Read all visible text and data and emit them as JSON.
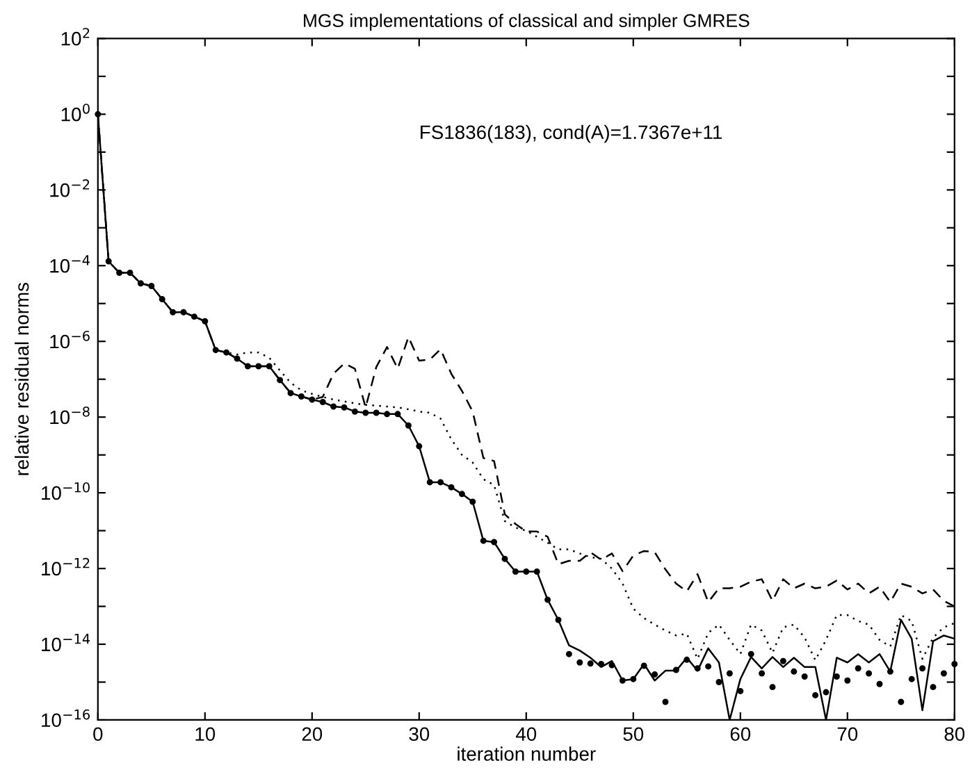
{
  "chart_data": {
    "type": "line",
    "title": "MGS implementations of classical and simpler GMRES",
    "xlabel": "iteration number",
    "ylabel": "relative residual norms",
    "annotations": [
      "FS1836(183), cond(A)=1.7367e+11"
    ],
    "x": [
      0,
      1,
      2,
      3,
      4,
      5,
      6,
      7,
      8,
      9,
      10,
      11,
      12,
      13,
      14,
      15,
      16,
      17,
      18,
      19,
      20,
      21,
      22,
      23,
      24,
      25,
      26,
      27,
      28,
      29,
      30,
      31,
      32,
      33,
      34,
      35,
      36,
      37,
      38,
      39,
      40,
      41,
      42,
      43,
      44,
      45,
      46,
      47,
      48,
      49,
      50,
      51,
      52,
      53,
      54,
      55,
      56,
      57,
      58,
      59,
      60,
      61,
      62,
      63,
      64,
      65,
      66,
      67,
      68,
      69,
      70,
      71,
      72,
      73,
      74,
      75,
      76,
      77,
      78,
      79,
      80
    ],
    "log": "y",
    "grid": false,
    "legend": false,
    "xlim": [
      0,
      80
    ],
    "xticks": [
      0,
      10,
      20,
      30,
      40,
      50,
      60,
      70,
      80
    ],
    "ylim": [
      1e-16,
      100
    ],
    "yticks": [
      {
        "value": 1e-16,
        "label": "10$^{−16}$"
      },
      {
        "value": 1e-15,
        "label": null
      },
      {
        "value": 1e-14,
        "label": "10$^{−14}$"
      },
      {
        "value": 1e-13,
        "label": null
      },
      {
        "value": 1e-12,
        "label": "10$^{−12}$"
      },
      {
        "value": 1e-11,
        "label": null
      },
      {
        "value": 1e-10,
        "label": "10$^{−10}$"
      },
      {
        "value": 1e-09,
        "label": null
      },
      {
        "value": 1e-08,
        "label": "10$^{−8}$"
      },
      {
        "value": 1e-07,
        "label": null
      },
      {
        "value": 1e-06,
        "label": "10$^{−6}$"
      },
      {
        "value": 1e-05,
        "label": null
      },
      {
        "value": 0.0001,
        "label": "10$^{−4}$"
      },
      {
        "value": 0.001,
        "label": null
      },
      {
        "value": 0.01,
        "label": "10$^{−2}$"
      },
      {
        "value": 0.1,
        "label": null
      },
      {
        "value": 1,
        "label": "10$^{0}$"
      },
      {
        "value": 10,
        "label": null
      },
      {
        "value": 100,
        "label": "10$^{2}$"
      }
    ],
    "series": [
      {
        "color": "#000000",
        "line_style": "solid",
        "marker": "none",
        "values": [
          1,
          0.00013,
          6.5e-05,
          6.5e-05,
          3.4e-05,
          2.9e-05,
          1.3e-05,
          5.9e-06,
          5.9e-06,
          4.5e-06,
          3.4e-06,
          5.9e-07,
          5.1e-07,
          3.5e-07,
          2.2e-07,
          2.2e-07,
          2.2e-07,
          9.5e-08,
          4.3e-08,
          3.5e-08,
          2.9e-08,
          2.5e-08,
          1.9e-08,
          1.8e-08,
          1.4e-08,
          1.3e-08,
          1.3e-08,
          1.2e-08,
          1.2e-08,
          6e-09,
          1.7e-09,
          1.9e-10,
          1.9e-10,
          1.4e-10,
          9.3e-11,
          5.8e-11,
          5.4e-12,
          5e-12,
          1.8e-12,
          8.3e-13,
          8.3e-13,
          8.3e-13,
          1.5e-13,
          4.4e-14,
          9.3e-15,
          6.8e-15,
          4.4e-15,
          2.5e-15,
          3.6e-15,
          1.1e-15,
          1.2e-15,
          3e-15,
          1.1e-15,
          2e-15,
          2e-15,
          4.4e-15,
          2e-15,
          7.8e-15,
          3.3e-15,
          1e-16,
          1.2e-15,
          4.6e-15,
          2.3e-15,
          4.6e-15,
          2.5e-15,
          4.4e-15,
          2.5e-15,
          2.5e-15,
          1e-16,
          4.4e-15,
          3.3e-15,
          5.5e-15,
          3.3e-15,
          5.5e-15,
          1.9e-15,
          4.4e-14,
          1.4e-14,
          1.8e-16,
          1.2e-14,
          1.7e-14,
          1.4e-14
        ]
      },
      {
        "type": "scatter",
        "color": "#000000",
        "marker": "circle",
        "values": [
          1,
          0.00013,
          6.5e-05,
          6.5e-05,
          3.4e-05,
          2.9e-05,
          1.3e-05,
          5.9e-06,
          5.9e-06,
          4.5e-06,
          3.4e-06,
          5.9e-07,
          5.1e-07,
          3.5e-07,
          2.2e-07,
          2.2e-07,
          2.2e-07,
          9.5e-08,
          4.3e-08,
          3.5e-08,
          2.9e-08,
          2.5e-08,
          1.9e-08,
          1.8e-08,
          1.4e-08,
          1.3e-08,
          1.3e-08,
          1.2e-08,
          1.2e-08,
          6e-09,
          1.7e-09,
          1.9e-10,
          1.9e-10,
          1.4e-10,
          9.3e-11,
          5.8e-11,
          5.4e-12,
          5e-12,
          1.8e-12,
          8.3e-13,
          8.3e-13,
          8.3e-13,
          1.5e-13,
          4.4e-14,
          5.5e-15,
          3.3e-15,
          3.1e-15,
          3e-15,
          2.8e-15,
          1.1e-15,
          1.2e-15,
          2.7e-15,
          1.6e-15,
          3e-16,
          2.1e-15,
          3.9e-15,
          2.3e-15,
          2.6e-15,
          1e-15,
          1.7e-15,
          5.8e-16,
          5.5e-15,
          1.7e-15,
          7.4e-16,
          3.6e-15,
          1.9e-15,
          1.4e-15,
          4.5e-16,
          5.4e-16,
          1.4e-15,
          1.1e-15,
          2.3e-15,
          1.7e-15,
          8.9e-16,
          1.9e-15,
          3e-16,
          1.2e-15,
          2.3e-15,
          7.4e-16,
          1.7e-15,
          3e-15
        ]
      },
      {
        "type": "line",
        "color": "#000000",
        "line_style": "dotted",
        "marker": "none",
        "values": [
          1,
          0.00013,
          6.5e-05,
          6.5e-05,
          3.4e-05,
          2.9e-05,
          1.3e-05,
          5.9e-06,
          5.9e-06,
          4.5e-06,
          3.4e-06,
          5.9e-07,
          5.1e-07,
          4.5e-07,
          5.1e-07,
          5.1e-07,
          3.7e-07,
          1.7e-07,
          8.1e-08,
          5.1e-08,
          4.1e-08,
          3.4e-08,
          2.9e-08,
          2.6e-08,
          2.3e-08,
          2.1e-08,
          2e-08,
          1.9e-08,
          1.8e-08,
          1.6e-08,
          1.4e-08,
          1.3e-08,
          9.1e-09,
          2.6e-09,
          1e-09,
          6.3e-10,
          2.3e-10,
          1.6e-10,
          1.8e-11,
          1.2e-11,
          1e-11,
          6.9e-12,
          4.8e-12,
          3.2e-12,
          3.2e-12,
          2.5e-12,
          2e-12,
          1.8e-12,
          1e-12,
          4e-13,
          8.7e-14,
          4.9e-14,
          3.3e-14,
          2.3e-14,
          1.7e-14,
          1.9e-14,
          4.1e-15,
          2e-14,
          3.3e-14,
          1.3e-14,
          5.5e-15,
          3.3e-14,
          2.3e-14,
          5.9e-15,
          2.8e-14,
          3.3e-14,
          1.5e-14,
          3.8e-15,
          1.3e-14,
          5.9e-14,
          5.9e-14,
          4.1e-14,
          3.3e-14,
          1.3e-14,
          8.7e-15,
          5.9e-14,
          4.1e-14,
          4.1e-15,
          1.5e-14,
          2.8e-14,
          3.6e-14
        ]
      },
      {
        "type": "line",
        "color": "#000000",
        "line_style": "dashed",
        "marker": "none",
        "values": [
          1,
          0.00013,
          6.5e-05,
          6.5e-05,
          3.4e-05,
          2.9e-05,
          1.3e-05,
          5.9e-06,
          5.9e-06,
          4.5e-06,
          3.4e-06,
          5.9e-07,
          5.1e-07,
          3.5e-07,
          2.2e-07,
          2.2e-07,
          2.2e-07,
          9.5e-08,
          4.3e-08,
          3.5e-08,
          2.9e-08,
          3.4e-08,
          1.4e-07,
          2.6e-07,
          1.9e-07,
          1.8e-08,
          2.1e-07,
          7.1e-07,
          1.9e-07,
          1.3e-06,
          3.1e-07,
          3.3e-07,
          6.2e-07,
          1.4e-07,
          4.9e-08,
          1.4e-08,
          8.3e-10,
          6.9e-10,
          2.7e-11,
          1.5e-11,
          9.5e-12,
          9.5e-12,
          6.9e-12,
          1.3e-12,
          1.6e-12,
          1.6e-12,
          2.7e-12,
          1.7e-12,
          2.5e-12,
          8.5e-13,
          2.2e-12,
          2.9e-12,
          2.7e-12,
          9.5e-13,
          4e-13,
          2.5e-13,
          7.1e-13,
          1.3e-13,
          3e-13,
          3e-13,
          3.3e-13,
          4.5e-13,
          5.2e-13,
          1.4e-13,
          5.2e-13,
          3e-13,
          4e-13,
          3e-13,
          3.3e-13,
          4.8e-13,
          2.8e-13,
          4e-13,
          2.2e-13,
          3.3e-13,
          1.3e-13,
          4e-13,
          3.3e-13,
          2.2e-13,
          2.8e-13,
          1.4e-13,
          1e-13
        ]
      }
    ]
  }
}
